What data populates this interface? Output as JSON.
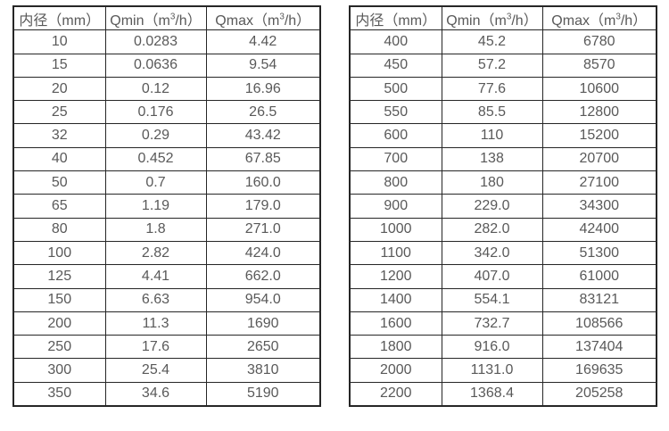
{
  "style": {
    "background": "#ffffff",
    "border_color": "#262626",
    "text_color": "#595959"
  },
  "chart_data": [
    {
      "type": "table",
      "columns": [
        "内径（mm）",
        "Qmin（m³/h）",
        "Qmax（m³/h）"
      ],
      "header": {
        "diameter": "内径（mm）",
        "qmin_pre": "Qmin（m",
        "qmin_sup": "3",
        "qmin_suf": "/h）",
        "qmax_pre": "Qmax（m",
        "qmax_sup": "3",
        "qmax_suf": "/h）"
      },
      "rows": [
        [
          "10",
          "0.0283",
          "4.42"
        ],
        [
          "15",
          "0.0636",
          "9.54"
        ],
        [
          "20",
          "0.12",
          "16.96"
        ],
        [
          "25",
          "0.176",
          "26.5"
        ],
        [
          "32",
          "0.29",
          "43.42"
        ],
        [
          "40",
          "0.452",
          "67.85"
        ],
        [
          "50",
          "0.7",
          "160.0"
        ],
        [
          "65",
          "1.19",
          "179.0"
        ],
        [
          "80",
          "1.8",
          "271.0"
        ],
        [
          "100",
          "2.82",
          "424.0"
        ],
        [
          "125",
          "4.41",
          "662.0"
        ],
        [
          "150",
          "6.63",
          "954.0"
        ],
        [
          "200",
          "11.3",
          "1690"
        ],
        [
          "250",
          "17.6",
          "2650"
        ],
        [
          "300",
          "25.4",
          "3810"
        ],
        [
          "350",
          "34.6",
          "5190"
        ]
      ]
    },
    {
      "type": "table",
      "columns": [
        "内径（mm）",
        "Qmin（m³/h）",
        "Qmax（m³/h）"
      ],
      "header": {
        "diameter": "内径（mm）",
        "qmin_pre": "Qmin（m",
        "qmin_sup": "3",
        "qmin_suf": "/h）",
        "qmax_pre": "Qmax（m",
        "qmax_sup": "3",
        "qmax_suf": "/h）"
      },
      "rows": [
        [
          "400",
          "45.2",
          "6780"
        ],
        [
          "450",
          "57.2",
          "8570"
        ],
        [
          "500",
          "77.6",
          "10600"
        ],
        [
          "550",
          "85.5",
          "12800"
        ],
        [
          "600",
          "110",
          "15200"
        ],
        [
          "700",
          "138",
          "20700"
        ],
        [
          "800",
          "180",
          "27100"
        ],
        [
          "900",
          "229.0",
          "34300"
        ],
        [
          "1000",
          "282.0",
          "42400"
        ],
        [
          "1100",
          "342.0",
          "51300"
        ],
        [
          "1200",
          "407.0",
          "61000"
        ],
        [
          "1400",
          "554.1",
          "83121"
        ],
        [
          "1600",
          "732.7",
          "108566"
        ],
        [
          "1800",
          "916.0",
          "137404"
        ],
        [
          "2000",
          "1131.0",
          "169635"
        ],
        [
          "2200",
          "1368.4",
          "205258"
        ]
      ]
    }
  ]
}
